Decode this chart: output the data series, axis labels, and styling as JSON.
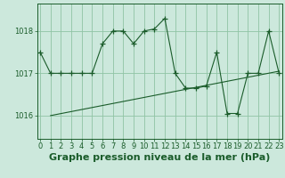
{
  "hours": [
    0,
    1,
    2,
    3,
    4,
    5,
    6,
    7,
    8,
    9,
    10,
    11,
    12,
    13,
    14,
    15,
    16,
    17,
    18,
    19,
    20,
    21,
    22,
    23
  ],
  "pressure": [
    1017.5,
    1017.0,
    1017.0,
    1017.0,
    1017.0,
    1017.0,
    1017.7,
    1018.0,
    1018.0,
    1017.7,
    1018.0,
    1018.05,
    1018.3,
    1017.0,
    1016.65,
    1016.65,
    1016.7,
    1017.5,
    1016.05,
    1016.05,
    1017.0,
    1017.0,
    1018.0,
    1017.0
  ],
  "trend_x": [
    1,
    23
  ],
  "trend_y": [
    1016.0,
    1017.05
  ],
  "bg_color": "#cce8dc",
  "line_color": "#1a5c2a",
  "grid_color": "#90c4a4",
  "axis_label_color": "#1a5c2a",
  "ylabel_ticks": [
    1016,
    1017,
    1018
  ],
  "xlabel": "Graphe pression niveau de la mer (hPa)",
  "xlim": [
    -0.3,
    23.3
  ],
  "ylim": [
    1015.45,
    1018.65
  ],
  "tick_fontsize": 6,
  "xlabel_fontsize": 8,
  "marker": "+",
  "marker_size": 4,
  "line_width": 0.8
}
